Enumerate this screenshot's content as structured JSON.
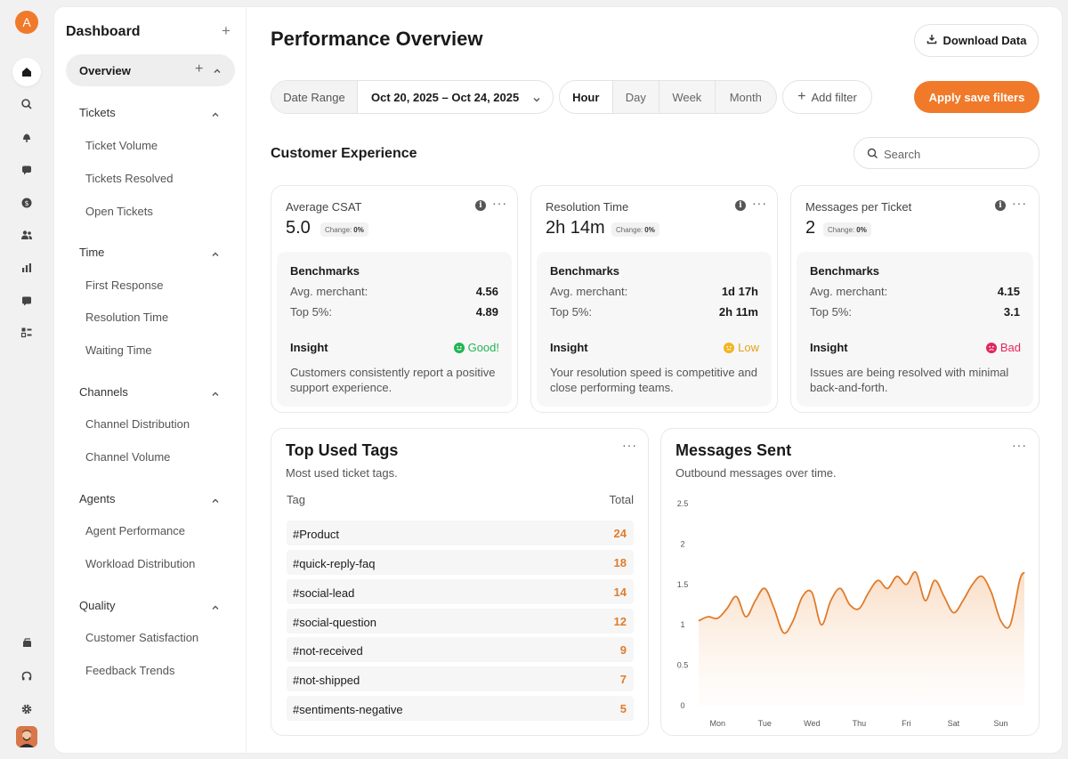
{
  "rail": {
    "logo_letter": "A",
    "icons": [
      "home-icon",
      "search-icon",
      "bell-icon",
      "chat-icon",
      "dollar-icon",
      "users-icon",
      "bar-chart-icon",
      "message-icon",
      "layout-icon",
      "stack-icon",
      "headset-icon",
      "gear-icon"
    ]
  },
  "sidebar": {
    "title": "Dashboard",
    "overview_label": "Overview",
    "sections": [
      {
        "label": "Tickets",
        "items": [
          "Ticket Volume",
          "Tickets Resolved",
          "Open Tickets"
        ]
      },
      {
        "label": "Time",
        "items": [
          "First Response",
          "Resolution Time",
          "Waiting Time"
        ]
      },
      {
        "label": "Channels",
        "items": [
          "Channel Distribution",
          "Channel Volume"
        ]
      },
      {
        "label": "Agents",
        "items": [
          "Agent Performance",
          "Workload Distribution"
        ]
      },
      {
        "label": "Quality",
        "items": [
          "Customer Satisfaction",
          "Feedback Trends"
        ]
      }
    ]
  },
  "header": {
    "title": "Performance Overview",
    "download_label": "Download Data"
  },
  "filters": {
    "date_label": "Date Range",
    "date_value": "Oct 20, 2025 – Oct 24, 2025",
    "granularity": [
      "Hour",
      "Day",
      "Week",
      "Month"
    ],
    "granularity_selected": "Hour",
    "add_filter_label": "Add filter",
    "apply_label": "Apply save filters"
  },
  "section": {
    "title": "Customer Experience",
    "search_placeholder": "Search"
  },
  "metrics": [
    {
      "title": "Average CSAT",
      "value": "5.0",
      "change_label": "Change:",
      "change_value": "0%",
      "benchmarks_label": "Benchmarks",
      "rows": [
        {
          "label": "Avg. merchant:",
          "value": "4.56"
        },
        {
          "label": "Top 5%:",
          "value": "4.89"
        }
      ],
      "insight_label": "Insight",
      "insight_status": "Good!",
      "insight_color": "#22b455",
      "insight_text": "Customers consistently report a positive support experience."
    },
    {
      "title": "Resolution Time",
      "value": "2h 14m",
      "change_label": "Change:",
      "change_value": "0%",
      "benchmarks_label": "Benchmarks",
      "rows": [
        {
          "label": "Avg. merchant:",
          "value": "1d 17h"
        },
        {
          "label": "Top 5%:",
          "value": "2h 11m"
        }
      ],
      "insight_label": "Insight",
      "insight_status": "Low",
      "insight_color": "#f2b51c",
      "insight_text": "Your resolution speed is competitive and close performing teams."
    },
    {
      "title": "Messages per Ticket",
      "value": "2",
      "change_label": "Change:",
      "change_value": "0%",
      "benchmarks_label": "Benchmarks",
      "rows": [
        {
          "label": "Avg. merchant:",
          "value": "4.15"
        },
        {
          "label": "Top 5%:",
          "value": "3.1"
        }
      ],
      "insight_label": "Insight",
      "insight_status": "Bad",
      "insight_color": "#e3275f",
      "insight_text": "Issues are being resolved with minimal back-and-forth."
    }
  ],
  "tags": {
    "title": "Top Used Tags",
    "subtitle": "Most used ticket tags.",
    "col_tag": "Tag",
    "col_total": "Total",
    "rows": [
      {
        "tag": "#Product",
        "total": "24"
      },
      {
        "tag": "#quick-reply-faq",
        "total": "18"
      },
      {
        "tag": "#social-lead",
        "total": "14"
      },
      {
        "tag": "#social-question",
        "total": "12"
      },
      {
        "tag": "#not-received",
        "total": "9"
      },
      {
        "tag": "#not-shipped",
        "total": "7"
      },
      {
        "tag": "#sentiments-negative",
        "total": "5"
      }
    ]
  },
  "messages": {
    "title": "Messages Sent",
    "subtitle": "Outbound messages over time."
  },
  "chart_data": {
    "type": "area",
    "title": "Messages Sent",
    "subtitle": "Outbound messages over time.",
    "categories": [
      "Mon",
      "Tue",
      "Wed",
      "Thu",
      "Fri",
      "Sat",
      "Sun"
    ],
    "y_ticks": [
      "0",
      "0.5",
      "1",
      "1.5",
      "2",
      "2.5"
    ],
    "ylim": [
      0,
      2.5
    ],
    "xlim": [
      -0.4,
      6.5
    ],
    "grid": false,
    "color": "#e07c2c",
    "series": [
      {
        "x": [
          -0.4,
          -0.2,
          0.0,
          0.2,
          0.4,
          0.6,
          0.8,
          1.0,
          1.2,
          1.4,
          1.6,
          1.8,
          2.0,
          2.2,
          2.4,
          2.6,
          2.8,
          3.0,
          3.2,
          3.4,
          3.6,
          3.8,
          4.0,
          4.2,
          4.4,
          4.6,
          4.8,
          5.0,
          5.2,
          5.4,
          5.6,
          5.8,
          6.0,
          6.2,
          6.4,
          6.5
        ],
        "values": [
          1.05,
          1.1,
          1.08,
          1.2,
          1.35,
          1.1,
          1.3,
          1.45,
          1.2,
          0.9,
          1.05,
          1.35,
          1.4,
          1.0,
          1.3,
          1.45,
          1.25,
          1.2,
          1.4,
          1.55,
          1.45,
          1.6,
          1.5,
          1.65,
          1.3,
          1.55,
          1.35,
          1.15,
          1.3,
          1.5,
          1.6,
          1.4,
          1.05,
          1.0,
          1.55,
          1.65
        ]
      }
    ]
  }
}
